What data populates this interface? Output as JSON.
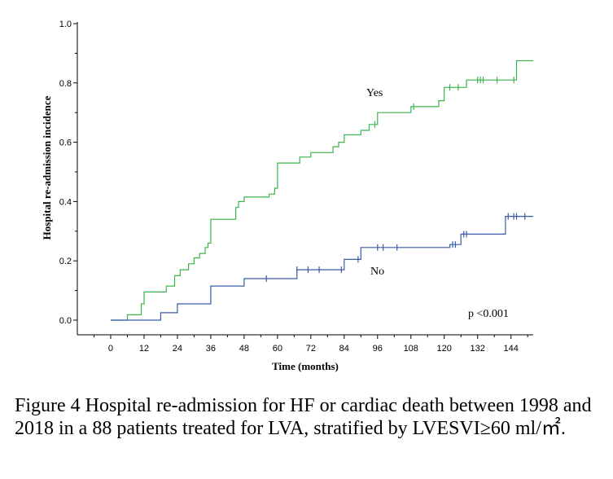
{
  "chart_data": {
    "type": "line",
    "title": "",
    "xlabel": "Time (months)",
    "ylabel": "Hospital re-admission incidence",
    "xlim": [
      -12,
      152
    ],
    "ylim": [
      0,
      1.0
    ],
    "x_ticks": [
      0,
      12,
      24,
      36,
      48,
      60,
      72,
      84,
      96,
      108,
      120,
      132,
      144
    ],
    "y_ticks": [
      0.0,
      0.2,
      0.4,
      0.6,
      0.8,
      1.0
    ],
    "y_tick_labels": [
      "0.0",
      "0.2",
      "0.4",
      "0.6",
      "0.8",
      "1.0"
    ],
    "annotation": "p <0.001",
    "series": [
      {
        "name": "Yes",
        "color": "#3cb44b",
        "steps": [
          [
            0,
            0
          ],
          [
            6,
            0.018
          ],
          [
            11,
            0.055
          ],
          [
            12,
            0.095
          ],
          [
            20,
            0.115
          ],
          [
            23,
            0.15
          ],
          [
            25,
            0.17
          ],
          [
            28,
            0.19
          ],
          [
            30,
            0.21
          ],
          [
            32,
            0.225
          ],
          [
            34,
            0.245
          ],
          [
            35,
            0.26
          ],
          [
            36,
            0.34
          ],
          [
            45,
            0.38
          ],
          [
            46,
            0.4
          ],
          [
            48,
            0.415
          ],
          [
            57,
            0.425
          ],
          [
            59,
            0.445
          ],
          [
            60,
            0.53
          ],
          [
            68,
            0.55
          ],
          [
            72,
            0.565
          ],
          [
            80,
            0.585
          ],
          [
            82,
            0.6
          ],
          [
            84,
            0.625
          ],
          [
            90,
            0.64
          ],
          [
            93,
            0.66
          ],
          [
            96,
            0.7
          ],
          [
            108,
            0.72
          ],
          [
            118,
            0.74
          ],
          [
            120,
            0.785
          ],
          [
            128,
            0.81
          ],
          [
            146,
            0.875
          ],
          [
            152,
            0.875
          ]
        ],
        "censored": [
          [
            95,
            0.66
          ],
          [
            109,
            0.72
          ],
          [
            122,
            0.785
          ],
          [
            125,
            0.785
          ],
          [
            132,
            0.81
          ],
          [
            133,
            0.81
          ],
          [
            134,
            0.81
          ],
          [
            139,
            0.81
          ],
          [
            145,
            0.81
          ]
        ]
      },
      {
        "name": "No",
        "color": "#3a5ba8",
        "steps": [
          [
            0,
            0
          ],
          [
            18,
            0.025
          ],
          [
            24,
            0.055
          ],
          [
            36,
            0.115
          ],
          [
            48,
            0.14
          ],
          [
            67,
            0.17
          ],
          [
            84,
            0.205
          ],
          [
            90,
            0.245
          ],
          [
            122,
            0.255
          ],
          [
            126,
            0.29
          ],
          [
            142,
            0.35
          ],
          [
            152,
            0.35
          ]
        ],
        "censored": [
          [
            56,
            0.14
          ],
          [
            67,
            0.17
          ],
          [
            71,
            0.17
          ],
          [
            75,
            0.17
          ],
          [
            83,
            0.17
          ],
          [
            89,
            0.205
          ],
          [
            96,
            0.245
          ],
          [
            98,
            0.245
          ],
          [
            103,
            0.245
          ],
          [
            123,
            0.255
          ],
          [
            124,
            0.255
          ],
          [
            127,
            0.29
          ],
          [
            128,
            0.29
          ],
          [
            143,
            0.35
          ],
          [
            145,
            0.35
          ],
          [
            146,
            0.35
          ],
          [
            149,
            0.35
          ]
        ]
      }
    ]
  },
  "caption": "Figure 4 Hospital re-admission for HF or cardiac death between 1998 and 2018 in a 88 patients treated for LVA, stratified by LVESVI≥60 ml/㎡."
}
